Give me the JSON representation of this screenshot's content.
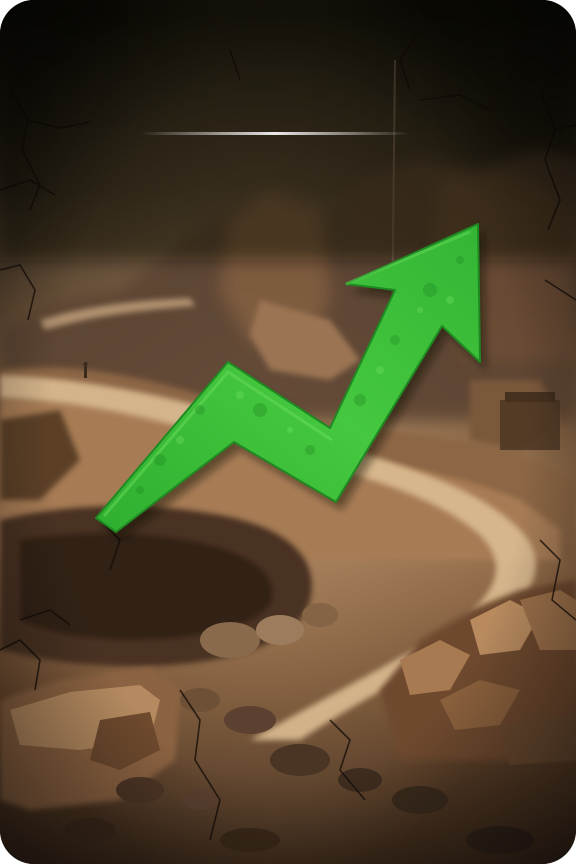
{
  "scene": {
    "subject": "quarry-with-rising-arrow",
    "colors": {
      "sky_dark": "#0c0a08",
      "haze": "#4a3a2c",
      "earth_light": "#c49a6c",
      "earth_mid": "#8a6240",
      "earth_dark": "#3a2618",
      "road": "#d8b88c",
      "arrow_green": "#3cc43a",
      "arrow_dark": "#1f8a22",
      "crack": "#120c08",
      "streak": "#e8e0d8"
    },
    "icons": [
      "arrow-up-trend-icon"
    ]
  }
}
